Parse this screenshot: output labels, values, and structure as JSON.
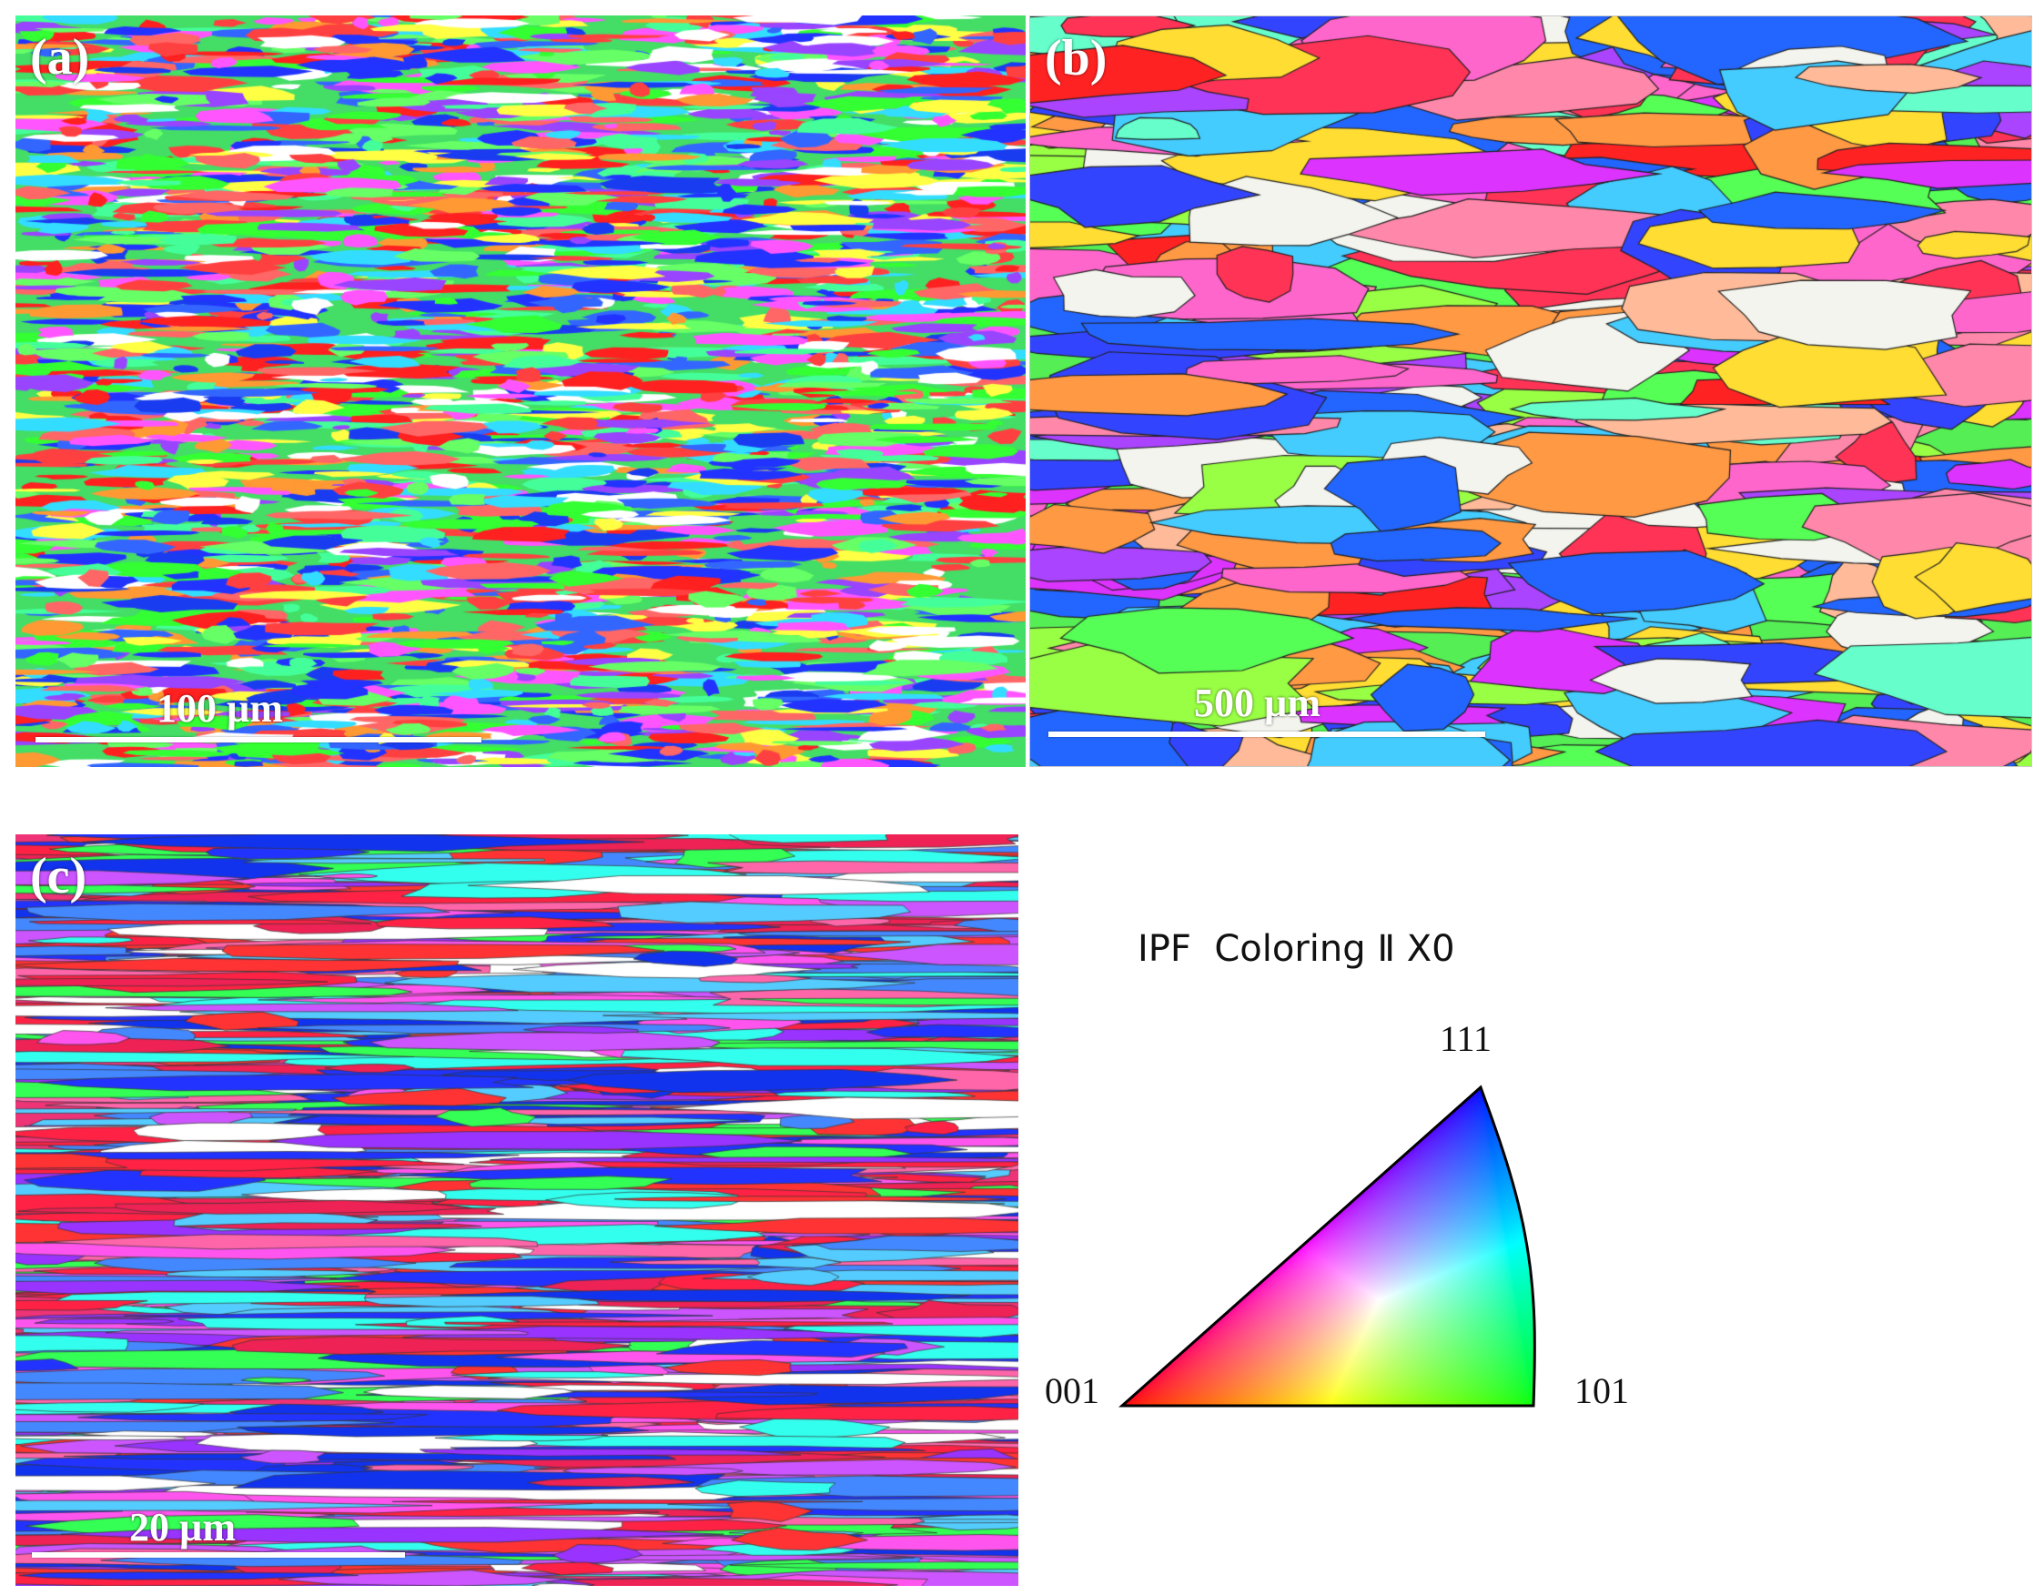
{
  "panels": [
    {
      "label": "(a)",
      "scale_bar": "100 µm",
      "map": "fine-grained-ipf-map"
    },
    {
      "label": "(b)",
      "scale_bar": "500 µm",
      "map": "coarse-grained-ipf-map"
    },
    {
      "label": "(c)",
      "scale_bar": "20 µm",
      "map": "banded-ipf-map"
    }
  ],
  "legend": {
    "title": "IPF  Coloring Ⅱ X0",
    "corner_111": "111",
    "corner_001": "001",
    "corner_101": "101",
    "colors": {
      "001": "#ff0000",
      "101": "#00ff00",
      "111": "#0000ff"
    }
  }
}
